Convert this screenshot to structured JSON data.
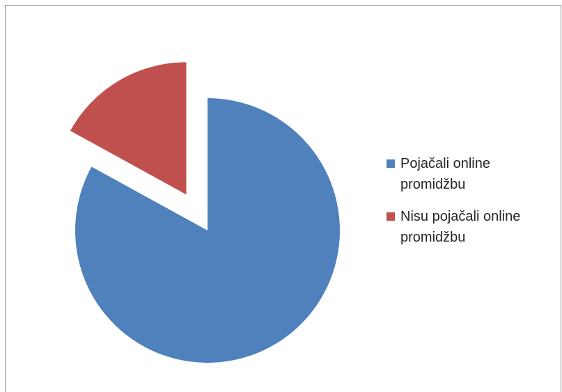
{
  "chart_data": {
    "type": "pie",
    "title": "",
    "series": [
      {
        "values": [
          83,
          17
        ]
      }
    ],
    "categories": [
      "Pojačali online promidžbu",
      "Nisu pojačali online promidžbu"
    ],
    "colors": [
      "#4f81bd",
      "#c0504d"
    ],
    "exploded_slice": "Nisu pojačali online promidžbu",
    "legend_position": "right"
  }
}
